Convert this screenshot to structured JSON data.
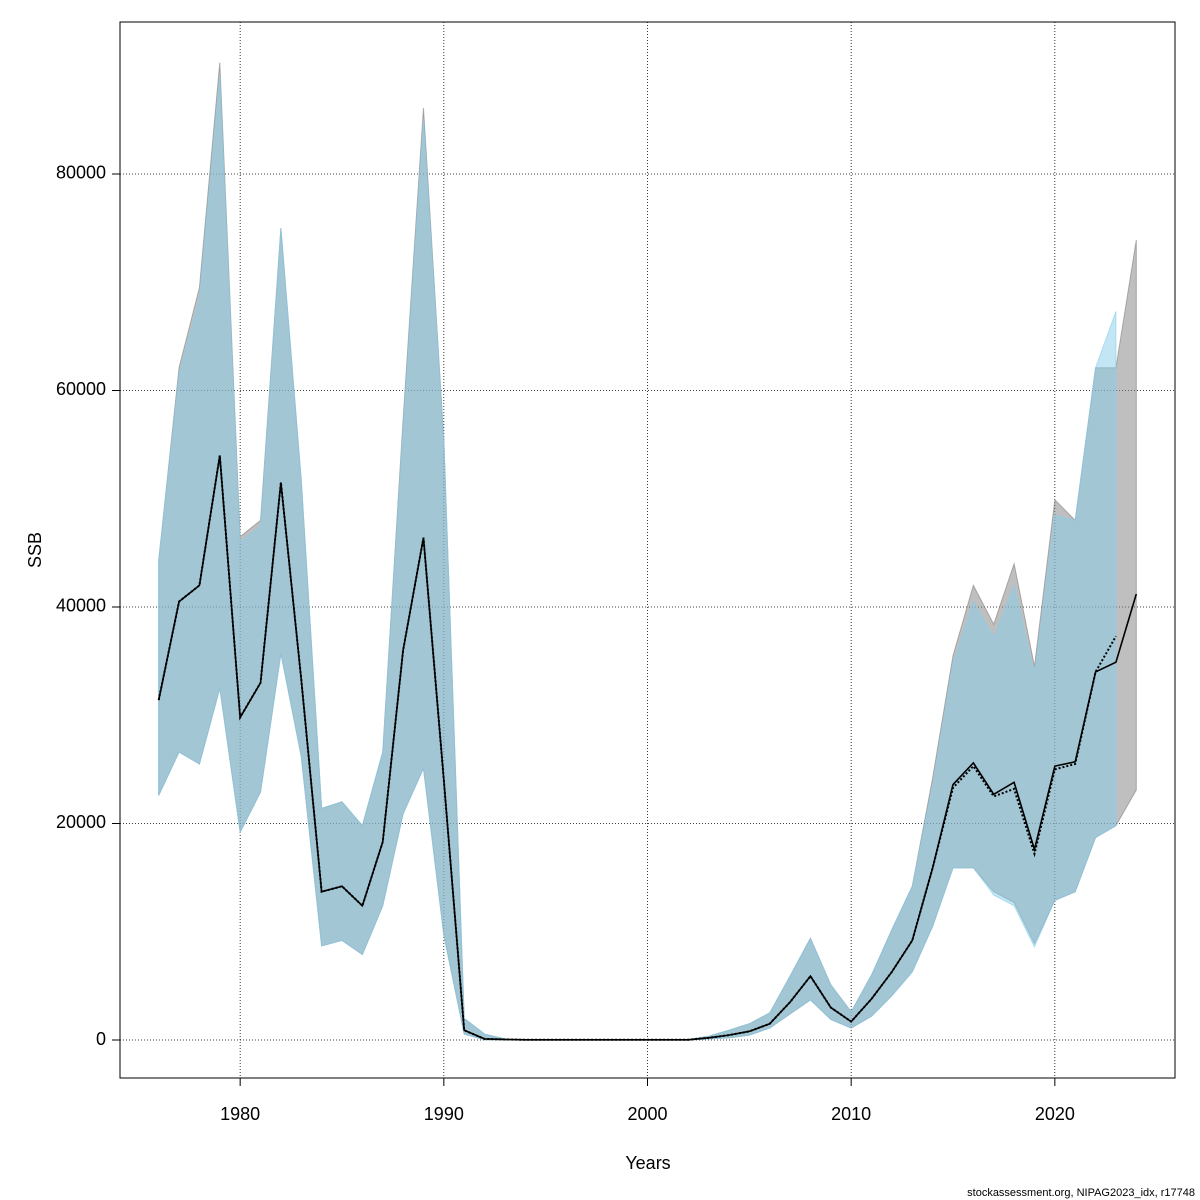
{
  "chart_data": {
    "type": "line",
    "x_label": "Years",
    "y_label": "SSB",
    "footer": "stockassessment.org, NIPAG2023_idx, r17748",
    "x": [
      1976,
      1977,
      1978,
      1979,
      1980,
      1981,
      1982,
      1983,
      1984,
      1985,
      1986,
      1987,
      1988,
      1989,
      1990,
      1991,
      1992,
      1993,
      1994,
      1995,
      1996,
      1997,
      1998,
      1999,
      2000,
      2001,
      2002,
      2003,
      2004,
      2005,
      2006,
      2007,
      2008,
      2009,
      2010,
      2011,
      2012,
      2013,
      2014,
      2015,
      2016,
      2017,
      2018,
      2019,
      2020,
      2021,
      2022,
      2023,
      2024
    ],
    "xlim": [
      1974.1,
      2025.9
    ],
    "ylim": [
      -3510,
      94040
    ],
    "xticks": [
      1980,
      1990,
      2000,
      2010,
      2020
    ],
    "yticks": [
      0,
      20000,
      40000,
      60000,
      80000
    ],
    "grid": true,
    "series": [
      {
        "color": "#000000",
        "band_color": "#808080",
        "line_style": "solid",
        "values": [
          31400,
          40500,
          42000,
          54000,
          29800,
          33000,
          51500,
          33300,
          13700,
          14200,
          12400,
          18300,
          36000,
          46400,
          24000,
          900,
          100,
          50,
          20,
          20,
          20,
          20,
          20,
          20,
          20,
          20,
          20,
          200,
          450,
          800,
          1500,
          3500,
          5900,
          3000,
          1700,
          3800,
          6300,
          9200,
          15900,
          23600,
          25600,
          22700,
          23800,
          17600,
          25300,
          25700,
          34000,
          34900,
          41200
        ],
        "upper": [
          44300,
          62100,
          69500,
          90300,
          46500,
          48000,
          75000,
          51700,
          21400,
          22000,
          19800,
          26600,
          57300,
          86100,
          55400,
          2000,
          550,
          100,
          50,
          50,
          50,
          50,
          50,
          50,
          50,
          50,
          50,
          350,
          900,
          1500,
          2500,
          5900,
          9400,
          5100,
          2600,
          6000,
          10200,
          14200,
          24200,
          35500,
          42000,
          38400,
          44000,
          34500,
          49900,
          48000,
          62100,
          62100,
          73900
        ],
        "lower": [
          22600,
          26600,
          25500,
          32500,
          19200,
          22900,
          35700,
          26200,
          8700,
          9200,
          7900,
          12400,
          20900,
          25100,
          9700,
          550,
          20,
          5,
          5,
          5,
          5,
          5,
          5,
          5,
          5,
          5,
          5,
          100,
          200,
          450,
          1100,
          2400,
          3700,
          1900,
          1100,
          2200,
          4100,
          6300,
          10500,
          15900,
          15900,
          13700,
          12700,
          8900,
          12900,
          13700,
          18700,
          19800,
          23100
        ]
      },
      {
        "color": "#000000",
        "band_color": "#87ceeb",
        "line_style": "dotted",
        "values": [
          31400,
          40500,
          42000,
          54000,
          29800,
          33000,
          51500,
          33300,
          13700,
          14200,
          12400,
          18300,
          36000,
          46400,
          24000,
          900,
          100,
          50,
          20,
          20,
          20,
          20,
          20,
          20,
          20,
          20,
          20,
          200,
          450,
          800,
          1500,
          3500,
          5900,
          3000,
          1700,
          3800,
          6300,
          9200,
          15900,
          23300,
          25300,
          22500,
          23200,
          17200,
          25000,
          25500,
          34000,
          37300,
          null
        ],
        "upper": [
          44300,
          61500,
          68500,
          89000,
          46000,
          47500,
          75000,
          51700,
          21400,
          22000,
          19800,
          26600,
          56500,
          85000,
          55400,
          2000,
          550,
          100,
          50,
          50,
          50,
          50,
          50,
          50,
          50,
          50,
          50,
          350,
          900,
          1500,
          2500,
          5900,
          9400,
          5100,
          2600,
          6000,
          10200,
          14200,
          23500,
          34800,
          40500,
          37200,
          42000,
          33800,
          48500,
          48000,
          62100,
          67300,
          null
        ],
        "lower": [
          22600,
          26600,
          25500,
          32500,
          19200,
          22900,
          35700,
          26200,
          8700,
          9200,
          7900,
          12400,
          20900,
          25100,
          9700,
          550,
          20,
          5,
          5,
          5,
          5,
          5,
          5,
          5,
          5,
          5,
          5,
          100,
          200,
          450,
          1100,
          2400,
          3700,
          1900,
          1100,
          2200,
          4100,
          6300,
          10500,
          15900,
          15900,
          13400,
          12400,
          8600,
          12900,
          13700,
          18700,
          19800,
          null
        ]
      }
    ]
  }
}
